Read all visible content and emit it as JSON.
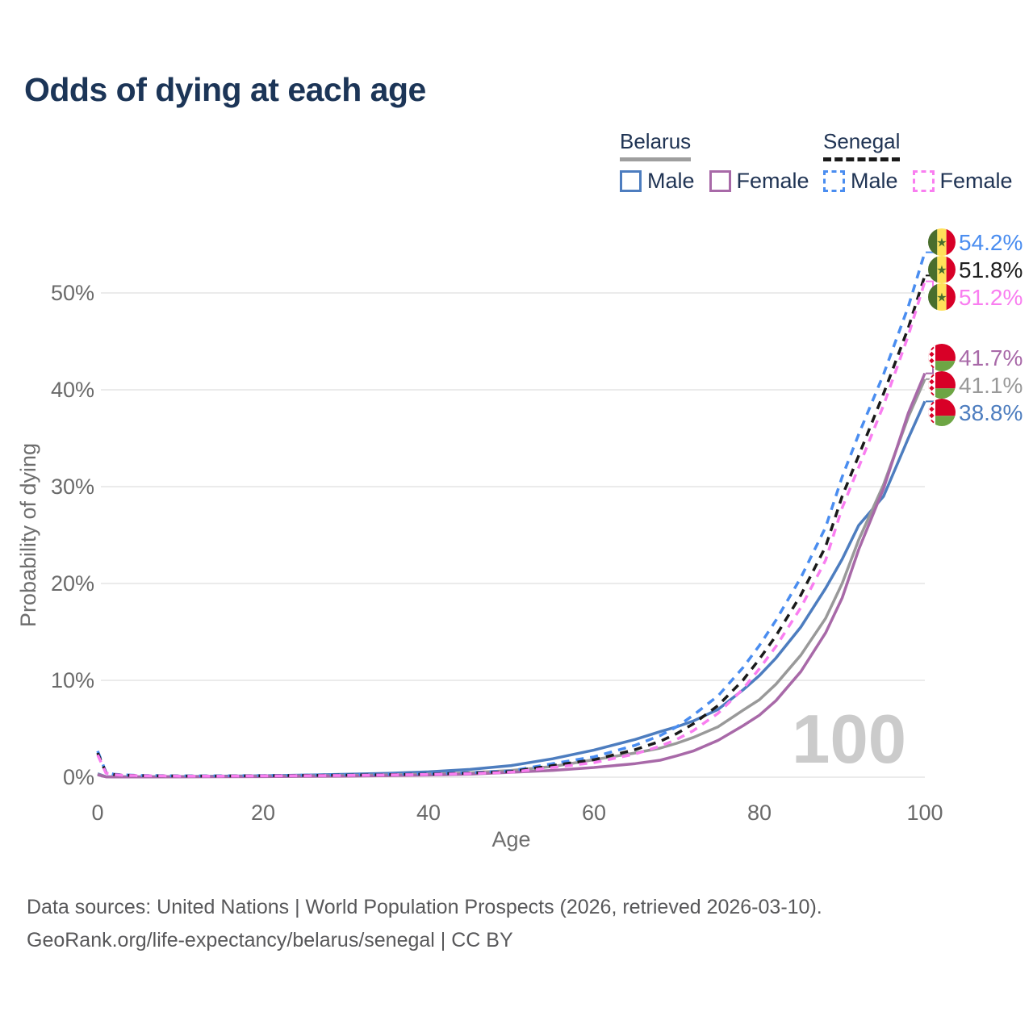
{
  "title": "Odds of dying at each age",
  "watermark_age": "100",
  "legend": {
    "belarus": {
      "label": "Belarus",
      "male": "Male",
      "female": "Female"
    },
    "senegal": {
      "label": "Senegal",
      "male": "Male",
      "female": "Female"
    }
  },
  "colors": {
    "belarus_underline": "#9e9e9e",
    "senegal_underline": "#1a1a1a",
    "belarus_male": "#4d7dbf",
    "belarus_female": "#a869a8",
    "belarus_both": "#999999",
    "senegal_male": "#4a8df0",
    "senegal_female": "#f97ef0",
    "senegal_both": "#1a1a1a",
    "grid": "#ebebeb",
    "tick_text": "#6a6a6a",
    "title_text": "#1c3557",
    "watermark": "#cbcbcb"
  },
  "chart_data": {
    "type": "line",
    "title": "Odds of dying at each age",
    "xlabel": "Age",
    "ylabel": "Probability of dying",
    "x_ticks": [
      0,
      20,
      40,
      60,
      80,
      100
    ],
    "y_tick_labels": [
      "0%",
      "10%",
      "20%",
      "30%",
      "40%",
      "50%"
    ],
    "xlim": [
      0,
      100
    ],
    "ylim_pct": [
      0,
      56
    ],
    "grid": true,
    "legend_position": "top-right",
    "ages": [
      0,
      1,
      2,
      3,
      5,
      10,
      15,
      20,
      25,
      30,
      35,
      40,
      45,
      50,
      55,
      60,
      65,
      68,
      70,
      72,
      75,
      78,
      80,
      82,
      85,
      88,
      90,
      92,
      95,
      98,
      100
    ],
    "series": [
      {
        "id": "belarus-male",
        "name": "Belarus Male",
        "country": "Belarus",
        "sex": "Male",
        "flag": "belarus",
        "dashed": false,
        "color": "#4d7dbf",
        "end_label": "38.8%",
        "values_pct": [
          0.35,
          0.05,
          0.04,
          0.04,
          0.04,
          0.06,
          0.1,
          0.15,
          0.22,
          0.3,
          0.4,
          0.55,
          0.8,
          1.2,
          1.9,
          2.8,
          3.9,
          4.7,
          5.2,
          5.8,
          7.0,
          9.0,
          10.5,
          12.3,
          15.5,
          19.5,
          22.5,
          26.0,
          29.0,
          35.0,
          38.8
        ]
      },
      {
        "id": "belarus-both",
        "name": "Belarus Both sexes",
        "country": "Belarus",
        "sex": "Both sexes",
        "flag": "belarus",
        "dashed": false,
        "color": "#999999",
        "end_label": "41.1%",
        "values_pct": [
          0.3,
          0.04,
          0.03,
          0.03,
          0.03,
          0.04,
          0.06,
          0.09,
          0.13,
          0.17,
          0.24,
          0.32,
          0.45,
          0.7,
          1.1,
          1.8,
          2.5,
          3.0,
          3.5,
          4.1,
          5.2,
          6.9,
          8.0,
          9.6,
          12.6,
          16.4,
          20.0,
          24.5,
          30.2,
          37.2,
          41.1
        ]
      },
      {
        "id": "belarus-female",
        "name": "Belarus Female",
        "country": "Belarus",
        "sex": "Female",
        "flag": "belarus",
        "dashed": false,
        "color": "#a869a8",
        "end_label": "41.7%",
        "values_pct": [
          0.25,
          0.03,
          0.02,
          0.02,
          0.02,
          0.03,
          0.04,
          0.05,
          0.08,
          0.11,
          0.16,
          0.22,
          0.32,
          0.5,
          0.7,
          1.0,
          1.4,
          1.75,
          2.2,
          2.7,
          3.8,
          5.3,
          6.4,
          7.9,
          10.9,
          14.9,
          18.5,
          23.5,
          29.8,
          37.6,
          41.7
        ]
      },
      {
        "id": "senegal-male",
        "name": "Senegal Male",
        "country": "Senegal",
        "sex": "Male",
        "flag": "senegal",
        "dashed": true,
        "color": "#4a8df0",
        "end_label": "54.2%",
        "values_pct": [
          2.7,
          0.5,
          0.3,
          0.24,
          0.18,
          0.13,
          0.14,
          0.17,
          0.2,
          0.24,
          0.29,
          0.36,
          0.47,
          0.65,
          1.4,
          2.1,
          3.3,
          4.3,
          5.2,
          6.4,
          8.4,
          11.3,
          13.6,
          16.2,
          20.6,
          25.8,
          31.0,
          35.4,
          41.6,
          48.6,
          54.2
        ]
      },
      {
        "id": "senegal-both",
        "name": "Senegal Both sexes",
        "country": "Senegal",
        "sex": "Both sexes",
        "flag": "senegal",
        "dashed": true,
        "color": "#1a1a1a",
        "end_label": "51.8%",
        "values_pct": [
          2.5,
          0.46,
          0.27,
          0.22,
          0.16,
          0.12,
          0.12,
          0.15,
          0.18,
          0.21,
          0.26,
          0.32,
          0.42,
          0.58,
          1.2,
          1.8,
          2.85,
          3.7,
          4.5,
          5.5,
          7.4,
          10.0,
          12.2,
          14.6,
          18.8,
          23.8,
          29.0,
          33.2,
          39.6,
          46.4,
          51.8
        ]
      },
      {
        "id": "senegal-female",
        "name": "Senegal Female",
        "country": "Senegal",
        "sex": "Female",
        "flag": "senegal",
        "dashed": true,
        "color": "#f97ef0",
        "end_label": "51.2%",
        "values_pct": [
          2.3,
          0.42,
          0.25,
          0.2,
          0.15,
          0.11,
          0.11,
          0.13,
          0.16,
          0.18,
          0.23,
          0.28,
          0.37,
          0.52,
          1.0,
          1.5,
          2.4,
          3.2,
          3.9,
          4.8,
          6.6,
          9.1,
          11.2,
          13.5,
          17.5,
          22.4,
          27.8,
          32.0,
          38.4,
          45.6,
          51.2
        ]
      }
    ]
  },
  "footer": {
    "line1": "Data sources: United Nations | World Population Prospects (2026, retrieved 2026-03-10).",
    "line2": "GeoRank.org/life-expectancy/belarus/senegal | CC BY"
  }
}
